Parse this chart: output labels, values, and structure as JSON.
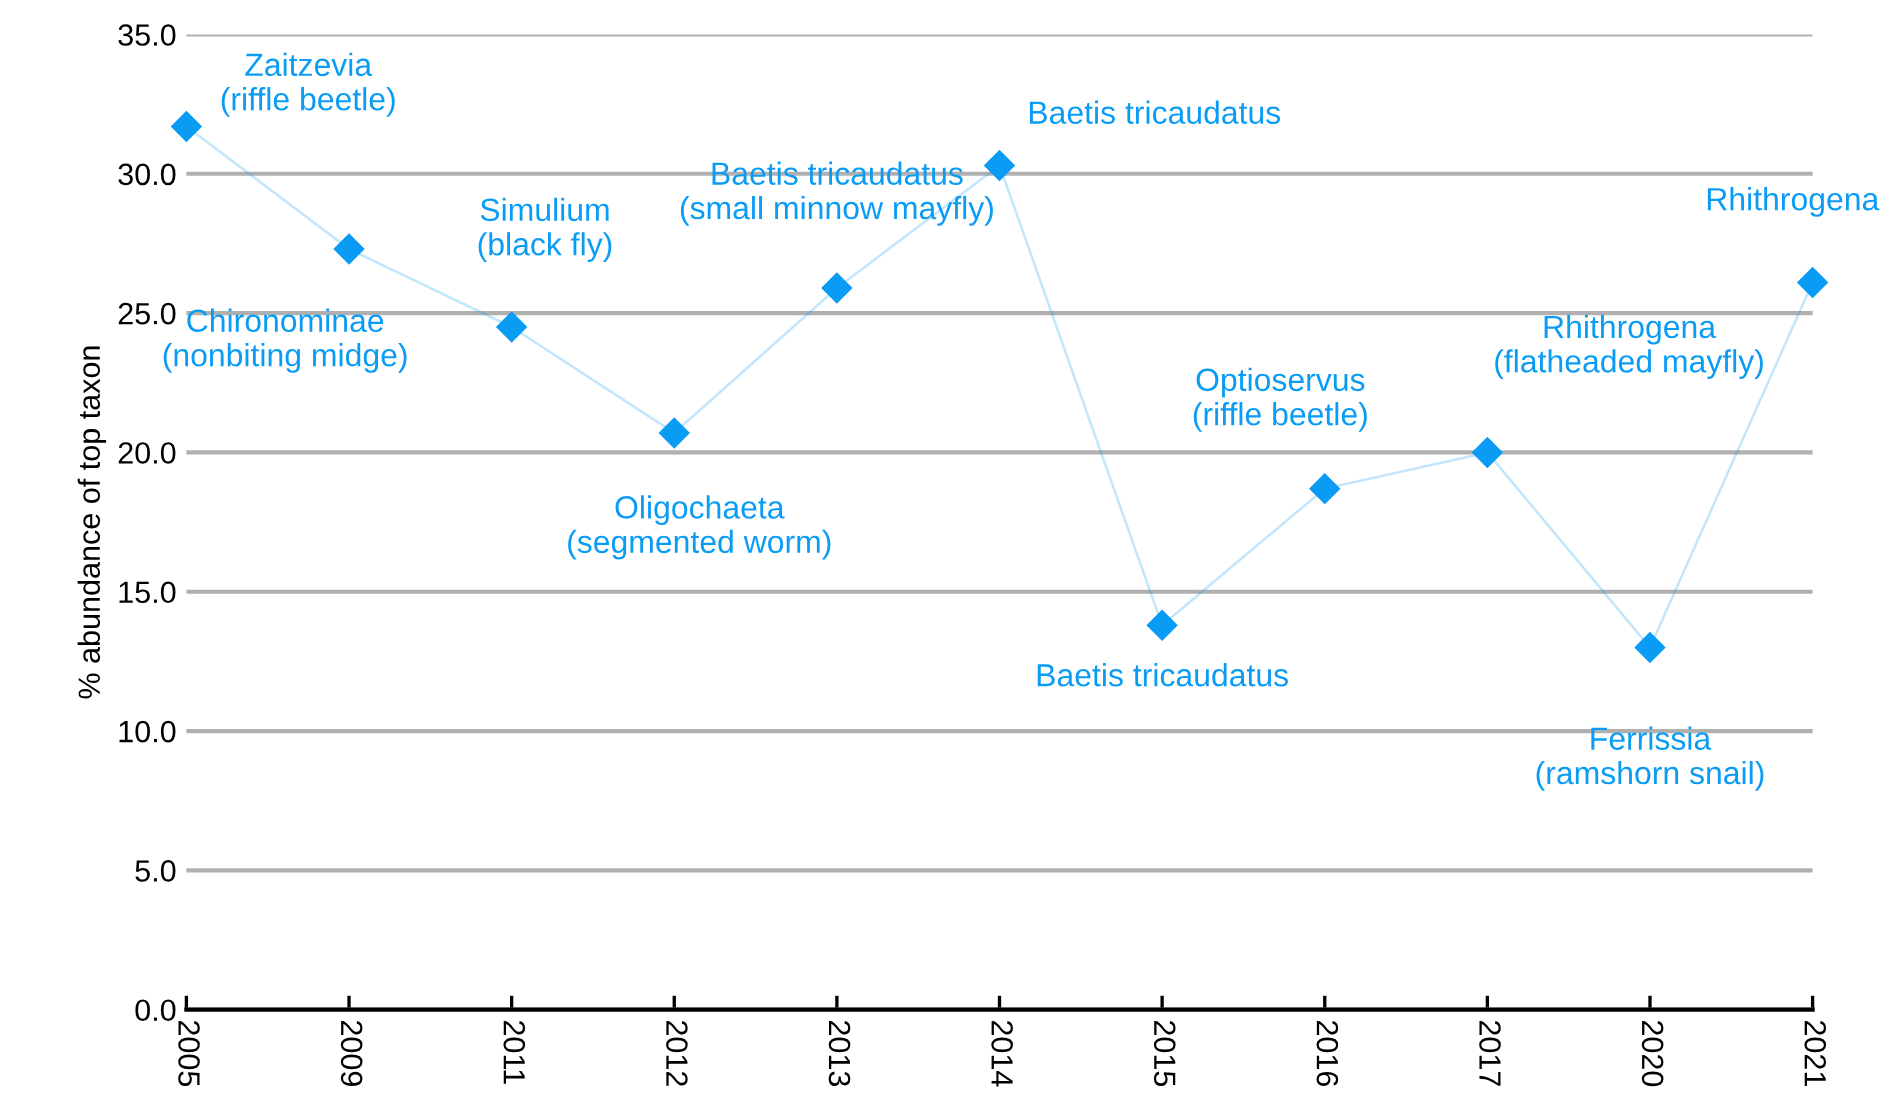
{
  "chart_data": {
    "type": "line",
    "ylabel": "% abundance of top taxon",
    "categories": [
      "2005",
      "2009",
      "2011",
      "2012",
      "2013",
      "2014",
      "2015",
      "2016",
      "2017",
      "2020",
      "2021"
    ],
    "series": [
      {
        "color": "#0a9cf5",
        "values": [
          31.7,
          27.3,
          24.5,
          20.7,
          25.9,
          30.3,
          13.8,
          18.7,
          20.0,
          13.0,
          26.1
        ]
      }
    ],
    "ylim": [
      0,
      35
    ],
    "yticks": [
      {
        "value": 0,
        "label": "0.0"
      },
      {
        "value": 5,
        "label": "5.0"
      },
      {
        "value": 10,
        "label": "10.0"
      },
      {
        "value": 15,
        "label": "15.0"
      },
      {
        "value": 20,
        "label": "20.0"
      },
      {
        "value": 25,
        "label": "25.0"
      },
      {
        "value": 30,
        "label": "30.0"
      },
      {
        "value": 35,
        "label": "35.0"
      }
    ],
    "grid": "y",
    "marker": "diamond",
    "line_style": "solid",
    "annotations": [
      {
        "text": "Zaitzevia\n(riffle beetle)",
        "x": "2005",
        "y": 31.7
      },
      {
        "text": "Chironominae\n(nonbiting midge)",
        "x": "2009",
        "y": 27.3
      },
      {
        "text": "Simulium\n(black fly)",
        "x": "2011",
        "y": 24.5
      },
      {
        "text": "Oligochaeta\n(segmented worm)",
        "x": "2012",
        "y": 20.7
      },
      {
        "text": "Baetis tricaudatus\n(small minnow mayfly)",
        "x": "2013",
        "y": 25.9
      },
      {
        "text": "Baetis tricaudatus",
        "x": "2014",
        "y": 30.3
      },
      {
        "text": "Baetis tricaudatus",
        "x": "2015",
        "y": 13.8
      },
      {
        "text": "Optioservus\n(riffle beetle)",
        "x": "2016",
        "y": 18.7
      },
      {
        "text": "Rhithrogena\n(flatheaded mayfly)",
        "x": "2017",
        "y": 20.0
      },
      {
        "text": "Ferrissia\n(ramshorn snail)",
        "x": "2020",
        "y": 13.0
      },
      {
        "text": "Rhithrogena",
        "x": "2021",
        "y": 26.1
      }
    ]
  }
}
